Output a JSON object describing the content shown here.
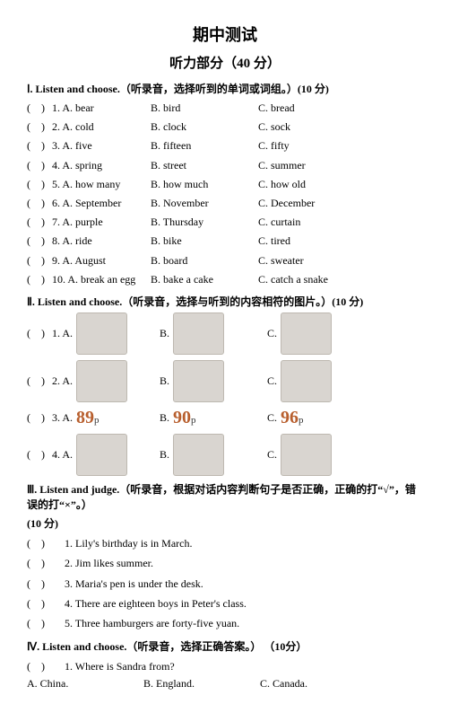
{
  "title": "期中测试",
  "subtitle": "听力部分（40 分）",
  "section1": {
    "heading": "Ⅰ. Listen and choose.（听录音，选择听到的单词或词组。）(10 分)",
    "rows": [
      {
        "n": "1. A. bear",
        "b": "B. bird",
        "c": "C. bread"
      },
      {
        "n": "2. A. cold",
        "b": "B. clock",
        "c": "C. sock"
      },
      {
        "n": "3. A. five",
        "b": "B. fifteen",
        "c": "C. fifty"
      },
      {
        "n": "4. A. spring",
        "b": "B. street",
        "c": "C. summer"
      },
      {
        "n": "5. A. how many",
        "b": "B. how much",
        "c": "C. how old"
      },
      {
        "n": "6. A. September",
        "b": "B. November",
        "c": "C. December"
      },
      {
        "n": "7. A. purple",
        "b": "B. Thursday",
        "c": "C. curtain"
      },
      {
        "n": "8. A. ride",
        "b": "B. bike",
        "c": "C. tired"
      },
      {
        "n": "9. A. August",
        "b": "B. board",
        "c": "C. sweater"
      },
      {
        "n": "10. A. break an egg",
        "b": "B. bake a cake",
        "c": "C. catch a snake"
      }
    ]
  },
  "section2": {
    "heading": "Ⅱ. Listen and choose.（听录音，选择与听到的内容相符的图片。）(10 分)",
    "rows": [
      {
        "idx": "1. A.",
        "b": "B.",
        "c": "C.",
        "type": "img"
      },
      {
        "idx": "2. A.",
        "b": "B.",
        "c": "C.",
        "type": "img"
      },
      {
        "idx": "3. A.",
        "b": "B.",
        "c": "C.",
        "type": "price",
        "pa": "89",
        "pb": "90",
        "pc": "96"
      },
      {
        "idx": "4. A.",
        "b": "B.",
        "c": "C.",
        "type": "img"
      }
    ],
    "price_suffix": "p"
  },
  "section3": {
    "heading": "Ⅲ. Listen and judge.（听录音，根据对话内容判断句子是否正确，正确的打“√”，错误的打“×”。）",
    "heading2": "(10 分)",
    "rows": [
      "1. Lily's birthday is in March.",
      "2. Jim likes summer.",
      "3. Maria's pen is under the desk.",
      "4. There are eighteen boys in Peter's class.",
      "5. Three hamburgers are forty-five yuan."
    ]
  },
  "section4": {
    "heading": "Ⅳ. Listen and choose.（听录音，选择正确答案。） （10分）",
    "q1": {
      "q": "1. Where is Sandra from?",
      "a": "A. China.",
      "b": "B. England.",
      "c": "C. Canada."
    }
  },
  "paren_left": "(",
  "paren_right": ")"
}
